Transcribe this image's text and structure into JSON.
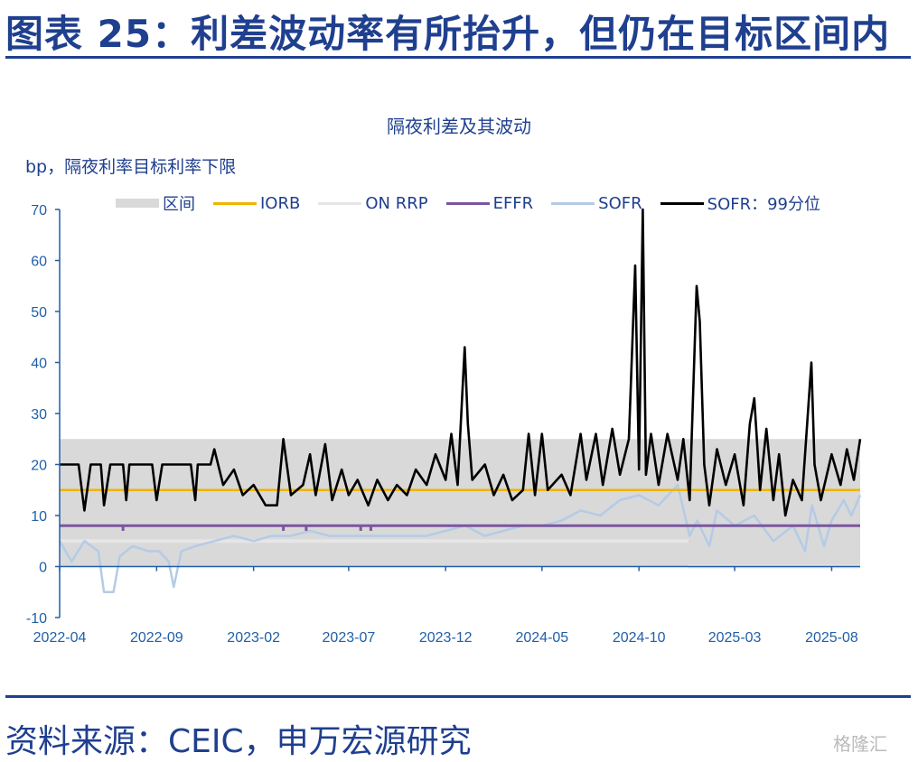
{
  "header": {
    "title": "图表 25：利差波动率有所抬升，但仍在目标区间内"
  },
  "footer": {
    "source": "资料来源：CEIC，申万宏源研究",
    "watermark": "格隆汇"
  },
  "colors": {
    "title": "#1f3f8f",
    "band": "#d9d9d9",
    "iorb": "#f0b400",
    "on_rrp": "#e6e6e6",
    "effr": "#7b56a0",
    "sofr": "#b4cbe6",
    "sofr99": "#000000",
    "axis": "#1f5fa8"
  },
  "chart_data": {
    "type": "line",
    "title": "隔夜利差及其波动",
    "unit_label": "bp，隔夜利率目标利率下限",
    "ylim": [
      -10,
      70
    ],
    "y_ticks": [
      70,
      60,
      50,
      40,
      30,
      20,
      10,
      0,
      -10
    ],
    "x_range": [
      "2022-04-01",
      "2025-09-15"
    ],
    "x_ticks": [
      "2022-04",
      "2022-09",
      "2023-02",
      "2023-07",
      "2023-12",
      "2024-05",
      "2024-10",
      "2025-03",
      "2025-08"
    ],
    "legend": [
      "区间",
      "IORB",
      "ON RRP",
      "EFFR",
      "SOFR",
      "SOFR：99分位"
    ],
    "band": {
      "name": "区间",
      "low": 0,
      "high": 25
    },
    "iorb": {
      "name": "IORB",
      "value": 15
    },
    "on_rrp": {
      "name": "ON RRP",
      "segments": [
        {
          "from": "2022-04-01",
          "to": "2024-12-18",
          "value": 5
        },
        {
          "from": "2024-12-18",
          "to": "2025-09-15",
          "value": 0
        }
      ]
    },
    "effr": {
      "name": "EFFR",
      "value": 8,
      "dips": [
        [
          "2022-07-10",
          7
        ],
        [
          "2023-03-20",
          7
        ],
        [
          "2023-04-25",
          7
        ],
        [
          "2023-07-20",
          7
        ],
        [
          "2023-08-05",
          7
        ]
      ]
    },
    "sofr": {
      "name": "SOFR",
      "points": [
        [
          "2022-04-01",
          5
        ],
        [
          "2022-04-20",
          1
        ],
        [
          "2022-05-10",
          5
        ],
        [
          "2022-06-01",
          3
        ],
        [
          "2022-06-10",
          -5
        ],
        [
          "2022-06-25",
          -5
        ],
        [
          "2022-07-05",
          2
        ],
        [
          "2022-07-25",
          4
        ],
        [
          "2022-08-20",
          3
        ],
        [
          "2022-09-05",
          3
        ],
        [
          "2022-09-20",
          1
        ],
        [
          "2022-09-28",
          -4
        ],
        [
          "2022-10-10",
          3
        ],
        [
          "2022-11-01",
          4
        ],
        [
          "2022-12-01",
          5
        ],
        [
          "2023-01-01",
          6
        ],
        [
          "2023-02-01",
          5
        ],
        [
          "2023-03-01",
          6
        ],
        [
          "2023-04-01",
          6
        ],
        [
          "2023-05-01",
          7
        ],
        [
          "2023-06-01",
          6
        ],
        [
          "2023-07-01",
          6
        ],
        [
          "2023-08-01",
          6
        ],
        [
          "2023-09-01",
          6
        ],
        [
          "2023-10-01",
          6
        ],
        [
          "2023-11-01",
          6
        ],
        [
          "2023-12-01",
          7
        ],
        [
          "2024-01-01",
          8
        ],
        [
          "2024-02-01",
          6
        ],
        [
          "2024-03-01",
          7
        ],
        [
          "2024-04-01",
          8
        ],
        [
          "2024-05-01",
          8
        ],
        [
          "2024-06-01",
          9
        ],
        [
          "2024-07-01",
          11
        ],
        [
          "2024-08-01",
          10
        ],
        [
          "2024-09-01",
          13
        ],
        [
          "2024-10-01",
          14
        ],
        [
          "2024-11-01",
          12
        ],
        [
          "2024-12-01",
          16
        ],
        [
          "2024-12-20",
          6
        ],
        [
          "2025-01-01",
          9
        ],
        [
          "2025-01-20",
          4
        ],
        [
          "2025-02-01",
          11
        ],
        [
          "2025-03-01",
          8
        ],
        [
          "2025-04-01",
          10
        ],
        [
          "2025-05-01",
          5
        ],
        [
          "2025-06-01",
          8
        ],
        [
          "2025-06-20",
          3
        ],
        [
          "2025-07-01",
          12
        ],
        [
          "2025-07-20",
          4
        ],
        [
          "2025-08-01",
          9
        ],
        [
          "2025-08-20",
          13
        ],
        [
          "2025-09-01",
          10
        ],
        [
          "2025-09-15",
          14
        ]
      ]
    },
    "sofr_99": {
      "name": "SOFR：99分位",
      "points": [
        [
          "2022-04-01",
          20
        ],
        [
          "2022-05-01",
          20
        ],
        [
          "2022-05-10",
          11
        ],
        [
          "2022-05-20",
          20
        ],
        [
          "2022-06-05",
          20
        ],
        [
          "2022-06-10",
          12
        ],
        [
          "2022-06-20",
          20
        ],
        [
          "2022-07-10",
          20
        ],
        [
          "2022-07-15",
          13
        ],
        [
          "2022-07-20",
          20
        ],
        [
          "2022-08-25",
          20
        ],
        [
          "2022-09-01",
          13
        ],
        [
          "2022-09-10",
          20
        ],
        [
          "2022-10-25",
          20
        ],
        [
          "2022-11-01",
          13
        ],
        [
          "2022-11-05",
          20
        ],
        [
          "2022-11-25",
          20
        ],
        [
          "2022-12-01",
          23
        ],
        [
          "2022-12-15",
          16
        ],
        [
          "2023-01-01",
          19
        ],
        [
          "2023-01-15",
          14
        ],
        [
          "2023-02-01",
          16
        ],
        [
          "2023-02-20",
          12
        ],
        [
          "2023-03-10",
          12
        ],
        [
          "2023-03-20",
          25
        ],
        [
          "2023-04-01",
          14
        ],
        [
          "2023-04-20",
          16
        ],
        [
          "2023-05-01",
          22
        ],
        [
          "2023-05-10",
          14
        ],
        [
          "2023-05-25",
          24
        ],
        [
          "2023-06-05",
          13
        ],
        [
          "2023-06-20",
          19
        ],
        [
          "2023-07-01",
          14
        ],
        [
          "2023-07-15",
          17
        ],
        [
          "2023-08-01",
          12
        ],
        [
          "2023-08-15",
          17
        ],
        [
          "2023-09-01",
          13
        ],
        [
          "2023-09-15",
          16
        ],
        [
          "2023-10-01",
          14
        ],
        [
          "2023-10-15",
          19
        ],
        [
          "2023-11-01",
          16
        ],
        [
          "2023-11-15",
          22
        ],
        [
          "2023-12-01",
          17
        ],
        [
          "2023-12-10",
          26
        ],
        [
          "2023-12-20",
          16
        ],
        [
          "2023-12-31",
          43
        ],
        [
          "2024-01-05",
          28
        ],
        [
          "2024-01-12",
          17
        ],
        [
          "2024-02-01",
          20
        ],
        [
          "2024-02-15",
          14
        ],
        [
          "2024-03-01",
          18
        ],
        [
          "2024-03-15",
          13
        ],
        [
          "2024-04-01",
          15
        ],
        [
          "2024-04-10",
          26
        ],
        [
          "2024-04-20",
          14
        ],
        [
          "2024-05-01",
          26
        ],
        [
          "2024-05-10",
          15
        ],
        [
          "2024-06-01",
          18
        ],
        [
          "2024-06-15",
          14
        ],
        [
          "2024-07-01",
          26
        ],
        [
          "2024-07-10",
          17
        ],
        [
          "2024-07-25",
          26
        ],
        [
          "2024-08-05",
          16
        ],
        [
          "2024-08-20",
          27
        ],
        [
          "2024-09-01",
          18
        ],
        [
          "2024-09-15",
          25
        ],
        [
          "2024-09-25",
          59
        ],
        [
          "2024-10-01",
          19
        ],
        [
          "2024-10-07",
          70
        ],
        [
          "2024-10-12",
          18
        ],
        [
          "2024-10-20",
          26
        ],
        [
          "2024-11-01",
          16
        ],
        [
          "2024-11-15",
          26
        ],
        [
          "2024-12-01",
          17
        ],
        [
          "2024-12-10",
          25
        ],
        [
          "2024-12-20",
          13
        ],
        [
          "2024-12-31",
          55
        ],
        [
          "2025-01-05",
          48
        ],
        [
          "2025-01-12",
          20
        ],
        [
          "2025-01-20",
          12
        ],
        [
          "2025-02-01",
          23
        ],
        [
          "2025-02-15",
          16
        ],
        [
          "2025-03-01",
          22
        ],
        [
          "2025-03-15",
          12
        ],
        [
          "2025-03-25",
          28
        ],
        [
          "2025-04-01",
          33
        ],
        [
          "2025-04-10",
          15
        ],
        [
          "2025-04-20",
          27
        ],
        [
          "2025-05-01",
          13
        ],
        [
          "2025-05-10",
          22
        ],
        [
          "2025-05-20",
          10
        ],
        [
          "2025-06-01",
          17
        ],
        [
          "2025-06-15",
          13
        ],
        [
          "2025-06-30",
          40
        ],
        [
          "2025-07-05",
          20
        ],
        [
          "2025-07-15",
          13
        ],
        [
          "2025-08-01",
          22
        ],
        [
          "2025-08-15",
          16
        ],
        [
          "2025-08-25",
          23
        ],
        [
          "2025-09-05",
          17
        ],
        [
          "2025-09-15",
          25
        ]
      ]
    }
  }
}
